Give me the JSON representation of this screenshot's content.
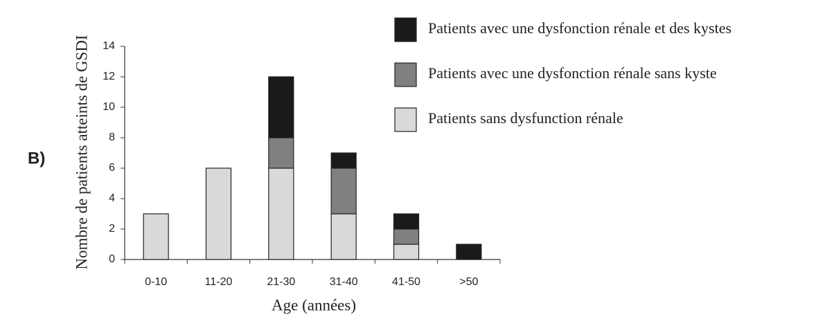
{
  "chart_data": {
    "type": "stacked_bar",
    "panel_label": "B)",
    "x_label": "Age (années)",
    "y_label": "Nombre de patients atteints de GSDI",
    "categories": [
      "0-10",
      "11-20",
      "21-30",
      "31-40",
      "41-50",
      ">50"
    ],
    "series": [
      {
        "name": "Patients sans dysfunction rénale",
        "color": "#d9d9d9",
        "values": [
          3,
          6,
          6,
          3,
          1,
          0
        ]
      },
      {
        "name": "Patients avec une dysfonction rénale sans kyste",
        "color": "#808080",
        "values": [
          0,
          0,
          2,
          3,
          1,
          0
        ]
      },
      {
        "name": "Patients avec une dysfonction rénale et des kystes",
        "color": "#1a1a1a",
        "values": [
          0,
          0,
          4,
          1,
          1,
          1
        ]
      }
    ],
    "ylim": [
      0,
      14
    ],
    "yticks": [
      0,
      2,
      4,
      6,
      8,
      10,
      12,
      14
    ],
    "grid": false,
    "legend": "upper right"
  }
}
